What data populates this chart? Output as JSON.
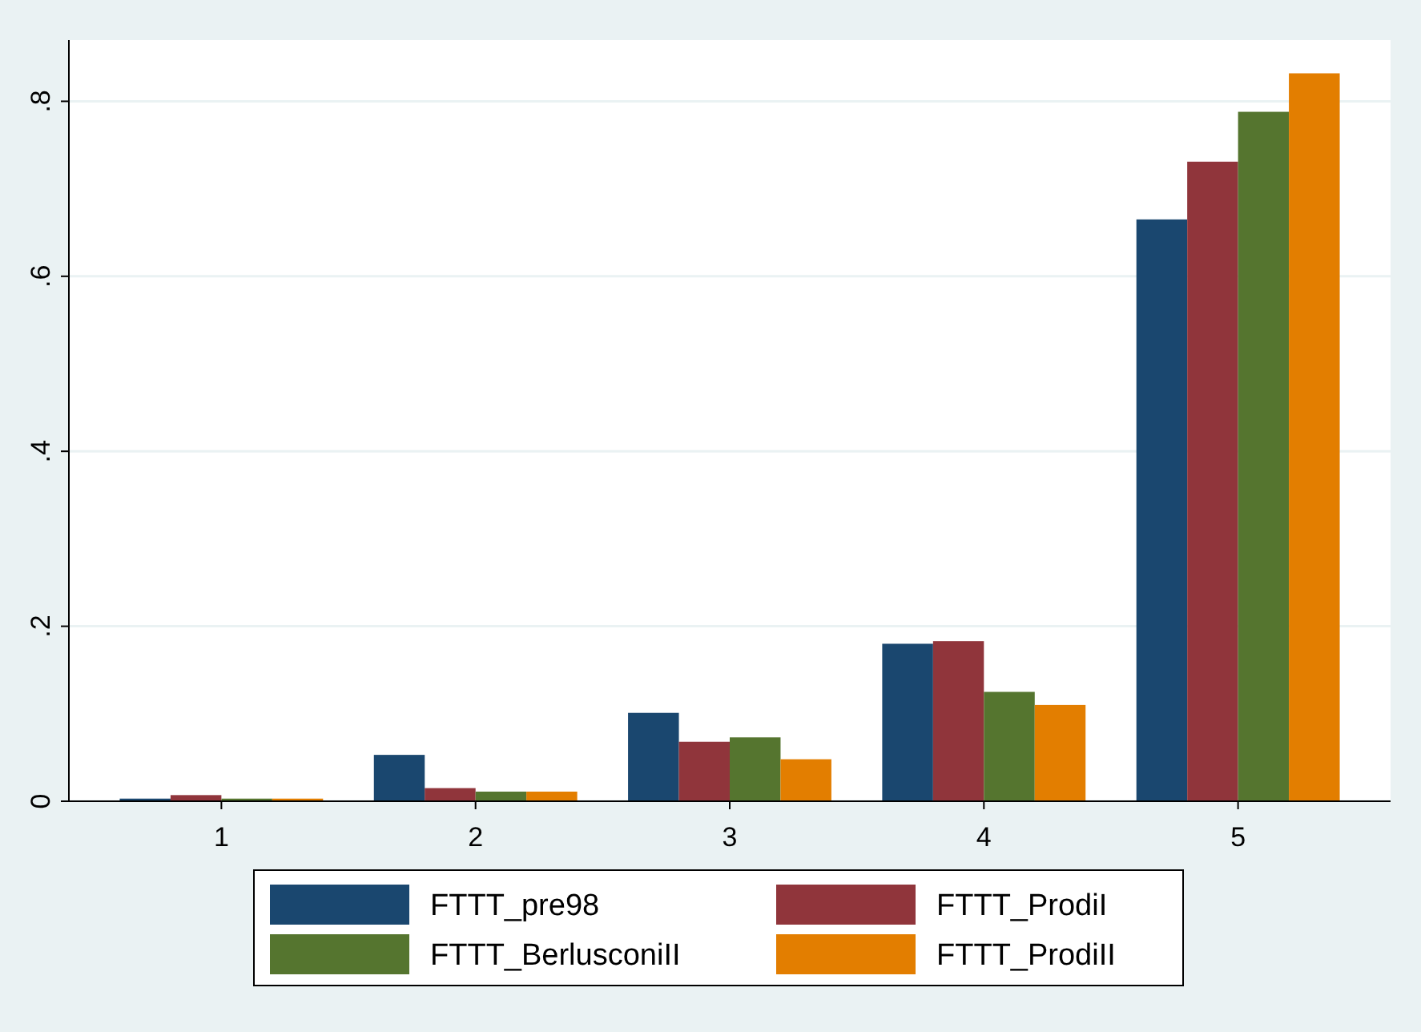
{
  "chart_data": {
    "type": "bar",
    "categories": [
      "1",
      "2",
      "3",
      "4",
      "5"
    ],
    "series": [
      {
        "name": "FTTT_pre98",
        "color": "#1a476f",
        "values": [
          0.003,
          0.053,
          0.101,
          0.18,
          0.665
        ]
      },
      {
        "name": "FTTT_ProdiI",
        "color": "#90353b",
        "values": [
          0.007,
          0.015,
          0.068,
          0.183,
          0.731
        ]
      },
      {
        "name": "FTTT_BerlusconiII",
        "color": "#55752f",
        "values": [
          0.003,
          0.011,
          0.073,
          0.125,
          0.788
        ]
      },
      {
        "name": "FTTT_ProdiII",
        "color": "#e37e00",
        "values": [
          0.003,
          0.011,
          0.048,
          0.11,
          0.832
        ]
      }
    ],
    "ylim": [
      0,
      0.87
    ],
    "yticks": [
      {
        "value": 0,
        "label": "0"
      },
      {
        "value": 0.2,
        "label": ".2"
      },
      {
        "value": 0.4,
        "label": ".4"
      },
      {
        "value": 0.6,
        "label": ".6"
      },
      {
        "value": 0.8,
        "label": ".8"
      }
    ],
    "grid": "y",
    "legend": "bottom"
  }
}
